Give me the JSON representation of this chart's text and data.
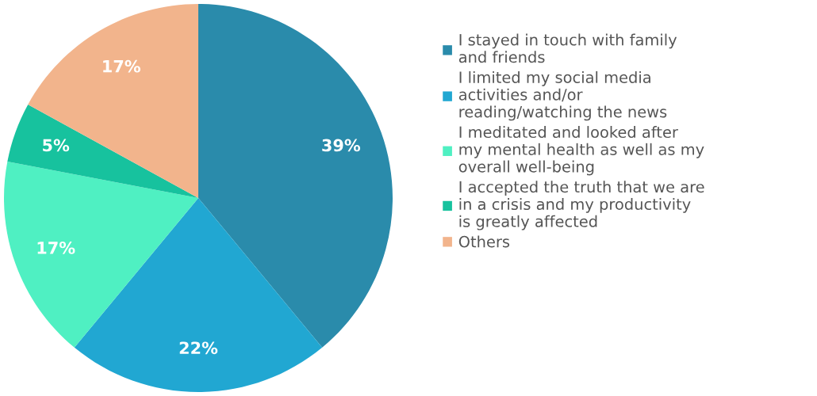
{
  "chart_data": {
    "type": "pie",
    "categories": [
      "I stayed in touch with family\nand friends",
      "I limited my social media\nactivities and/or\nreading/watching the news",
      "I meditated and looked after\nmy mental health as well as my\noverall well-being",
      "I accepted the truth that we are\nin a crisis and my productivity\nis greatly affected",
      "Others"
    ],
    "values": [
      39,
      22,
      17,
      5,
      17
    ],
    "colors": [
      "#2a8bab",
      "#21a7d2",
      "#4ff0c2",
      "#17c29e",
      "#f2b48c"
    ],
    "value_labels": [
      "39%",
      "22%",
      "17%",
      "5%",
      "17%"
    ],
    "legend": "right"
  }
}
